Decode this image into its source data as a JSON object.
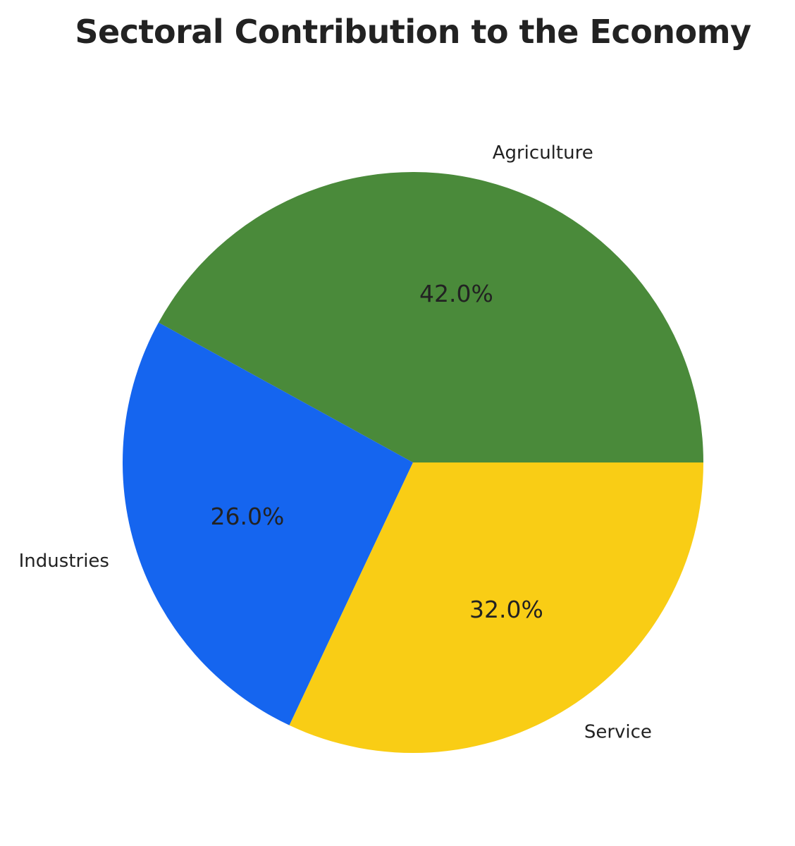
{
  "chart_data": {
    "type": "pie",
    "title": "Sectoral Contribution to the Economy",
    "categories": [
      "Agriculture",
      "Industries",
      "Service"
    ],
    "values": [
      42.0,
      26.0,
      32.0
    ],
    "percent_labels": [
      "42.0%",
      "26.0%",
      "32.0%"
    ],
    "colors": [
      "#4a8a3a",
      "#1565ef",
      "#f9cd15"
    ],
    "start_angle_deg": 0,
    "direction": "counterclockwise",
    "legend": "none"
  }
}
